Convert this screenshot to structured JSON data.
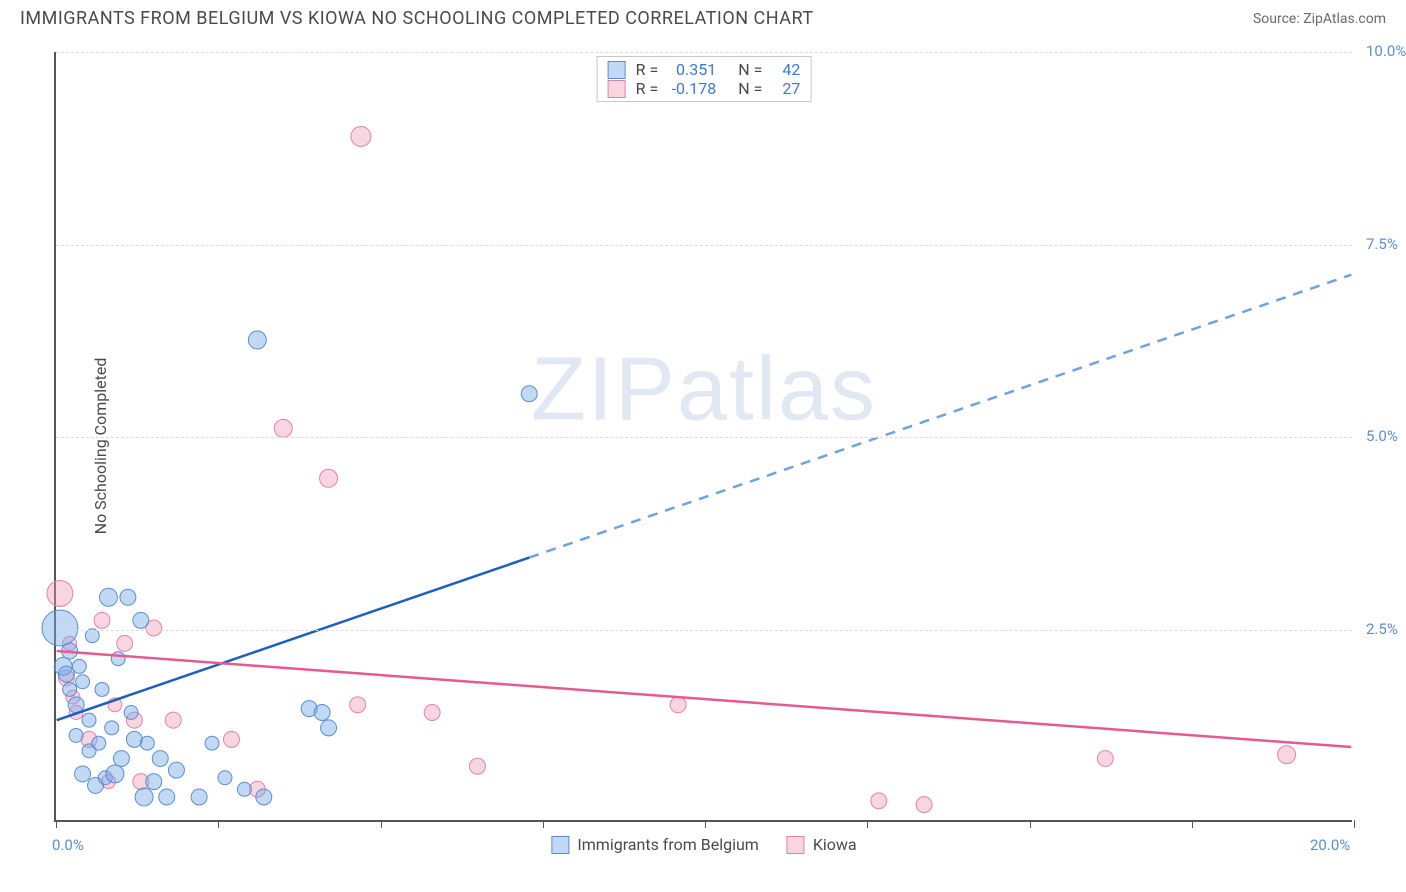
{
  "header": {
    "title": "IMMIGRANTS FROM BELGIUM VS KIOWA NO SCHOOLING COMPLETED CORRELATION CHART",
    "source_label": "Source: ZipAtlas.com"
  },
  "chart": {
    "type": "scatter",
    "watermark": "ZIPatlas",
    "ylabel": "No Schooling Completed",
    "xlim": [
      0,
      20
    ],
    "ylim": [
      0,
      10
    ],
    "x_ticks": [
      0,
      2.5,
      5,
      7.5,
      10,
      12.5,
      15,
      17.5,
      20
    ],
    "x_tick_labels": {
      "0": "0.0%",
      "20": "20.0%"
    },
    "y_ticks": [
      2.5,
      5.0,
      7.5,
      10.0
    ],
    "y_tick_labels": {
      "2.5": "2.5%",
      "5.0": "5.0%",
      "7.5": "7.5%",
      "10.0": "10.0%"
    },
    "grid_color": "#dcdcdc",
    "axis_color": "#555555",
    "label_color": "#5a8dd6",
    "background_color": "#ffffff",
    "series": [
      {
        "name": "Immigrants from Belgium",
        "label": "Immigrants from Belgium",
        "fill_color": "rgba(120,170,230,0.45)",
        "stroke_color": "#5a8dd6",
        "R": "0.351",
        "N": "42",
        "trend": {
          "x1": 0,
          "y1": 1.3,
          "x2": 20,
          "y2": 7.1,
          "solid_until_x": 7.3,
          "solid_color": "#1d5fbf",
          "dash_color": "#6fa3e0",
          "width": 2.5
        },
        "points": [
          {
            "x": 0.05,
            "y": 2.5,
            "r": 18
          },
          {
            "x": 0.1,
            "y": 2.0,
            "r": 9
          },
          {
            "x": 0.15,
            "y": 1.9,
            "r": 8
          },
          {
            "x": 0.2,
            "y": 1.7,
            "r": 7
          },
          {
            "x": 0.2,
            "y": 2.2,
            "r": 8
          },
          {
            "x": 0.3,
            "y": 1.5,
            "r": 8
          },
          {
            "x": 0.3,
            "y": 1.1,
            "r": 7
          },
          {
            "x": 0.35,
            "y": 2.0,
            "r": 7
          },
          {
            "x": 0.4,
            "y": 0.6,
            "r": 8
          },
          {
            "x": 0.4,
            "y": 1.8,
            "r": 7
          },
          {
            "x": 0.5,
            "y": 1.3,
            "r": 7
          },
          {
            "x": 0.5,
            "y": 0.9,
            "r": 7
          },
          {
            "x": 0.55,
            "y": 2.4,
            "r": 7
          },
          {
            "x": 0.6,
            "y": 0.45,
            "r": 8
          },
          {
            "x": 0.65,
            "y": 1.0,
            "r": 7
          },
          {
            "x": 0.7,
            "y": 1.7,
            "r": 7
          },
          {
            "x": 0.75,
            "y": 0.55,
            "r": 7
          },
          {
            "x": 0.8,
            "y": 2.9,
            "r": 9
          },
          {
            "x": 0.85,
            "y": 1.2,
            "r": 7
          },
          {
            "x": 0.9,
            "y": 0.6,
            "r": 9
          },
          {
            "x": 0.95,
            "y": 2.1,
            "r": 7
          },
          {
            "x": 1.0,
            "y": 0.8,
            "r": 8
          },
          {
            "x": 1.1,
            "y": 2.9,
            "r": 8
          },
          {
            "x": 1.15,
            "y": 1.4,
            "r": 7
          },
          {
            "x": 1.2,
            "y": 1.05,
            "r": 8
          },
          {
            "x": 1.3,
            "y": 2.6,
            "r": 8
          },
          {
            "x": 1.35,
            "y": 0.3,
            "r": 9
          },
          {
            "x": 1.4,
            "y": 1.0,
            "r": 7
          },
          {
            "x": 1.5,
            "y": 0.5,
            "r": 8
          },
          {
            "x": 1.6,
            "y": 0.8,
            "r": 8
          },
          {
            "x": 1.7,
            "y": 0.3,
            "r": 8
          },
          {
            "x": 1.85,
            "y": 0.65,
            "r": 8
          },
          {
            "x": 2.2,
            "y": 0.3,
            "r": 8
          },
          {
            "x": 2.4,
            "y": 1.0,
            "r": 7
          },
          {
            "x": 2.6,
            "y": 0.55,
            "r": 7
          },
          {
            "x": 2.9,
            "y": 0.4,
            "r": 7
          },
          {
            "x": 3.1,
            "y": 6.25,
            "r": 9
          },
          {
            "x": 3.2,
            "y": 0.3,
            "r": 8
          },
          {
            "x": 3.9,
            "y": 1.45,
            "r": 8
          },
          {
            "x": 4.1,
            "y": 1.4,
            "r": 8
          },
          {
            "x": 4.2,
            "y": 1.2,
            "r": 8
          },
          {
            "x": 7.3,
            "y": 5.55,
            "r": 8
          }
        ]
      },
      {
        "name": "Kiowa",
        "label": "Kiowa",
        "fill_color": "rgba(240,150,180,0.40)",
        "stroke_color": "#e084a7",
        "R": "-0.178",
        "N": "27",
        "trend": {
          "x1": 0,
          "y1": 2.2,
          "x2": 20,
          "y2": 0.95,
          "solid_until_x": 20,
          "solid_color": "#e75a8d",
          "dash_color": "#e75a8d",
          "width": 2.5
        },
        "points": [
          {
            "x": 0.05,
            "y": 2.95,
            "r": 13
          },
          {
            "x": 0.15,
            "y": 1.85,
            "r": 8
          },
          {
            "x": 0.2,
            "y": 2.3,
            "r": 7
          },
          {
            "x": 0.25,
            "y": 1.6,
            "r": 7
          },
          {
            "x": 0.3,
            "y": 1.4,
            "r": 7
          },
          {
            "x": 0.5,
            "y": 1.05,
            "r": 8
          },
          {
            "x": 0.7,
            "y": 2.6,
            "r": 8
          },
          {
            "x": 0.8,
            "y": 0.5,
            "r": 7
          },
          {
            "x": 0.9,
            "y": 1.5,
            "r": 7
          },
          {
            "x": 1.05,
            "y": 2.3,
            "r": 8
          },
          {
            "x": 1.2,
            "y": 1.3,
            "r": 8
          },
          {
            "x": 1.3,
            "y": 0.5,
            "r": 8
          },
          {
            "x": 1.5,
            "y": 2.5,
            "r": 8
          },
          {
            "x": 1.8,
            "y": 1.3,
            "r": 8
          },
          {
            "x": 2.7,
            "y": 1.05,
            "r": 8
          },
          {
            "x": 3.1,
            "y": 0.4,
            "r": 8
          },
          {
            "x": 3.5,
            "y": 5.1,
            "r": 9
          },
          {
            "x": 4.2,
            "y": 4.45,
            "r": 9
          },
          {
            "x": 4.65,
            "y": 1.5,
            "r": 8
          },
          {
            "x": 4.7,
            "y": 8.9,
            "r": 10
          },
          {
            "x": 5.8,
            "y": 1.4,
            "r": 8
          },
          {
            "x": 6.5,
            "y": 0.7,
            "r": 8
          },
          {
            "x": 9.6,
            "y": 1.5,
            "r": 8
          },
          {
            "x": 12.7,
            "y": 0.25,
            "r": 8
          },
          {
            "x": 13.4,
            "y": 0.2,
            "r": 8
          },
          {
            "x": 16.2,
            "y": 0.8,
            "r": 8
          },
          {
            "x": 19.0,
            "y": 0.85,
            "r": 9
          }
        ]
      }
    ]
  },
  "legend_top_label_R": "R  =",
  "legend_top_label_N": "N  ="
}
